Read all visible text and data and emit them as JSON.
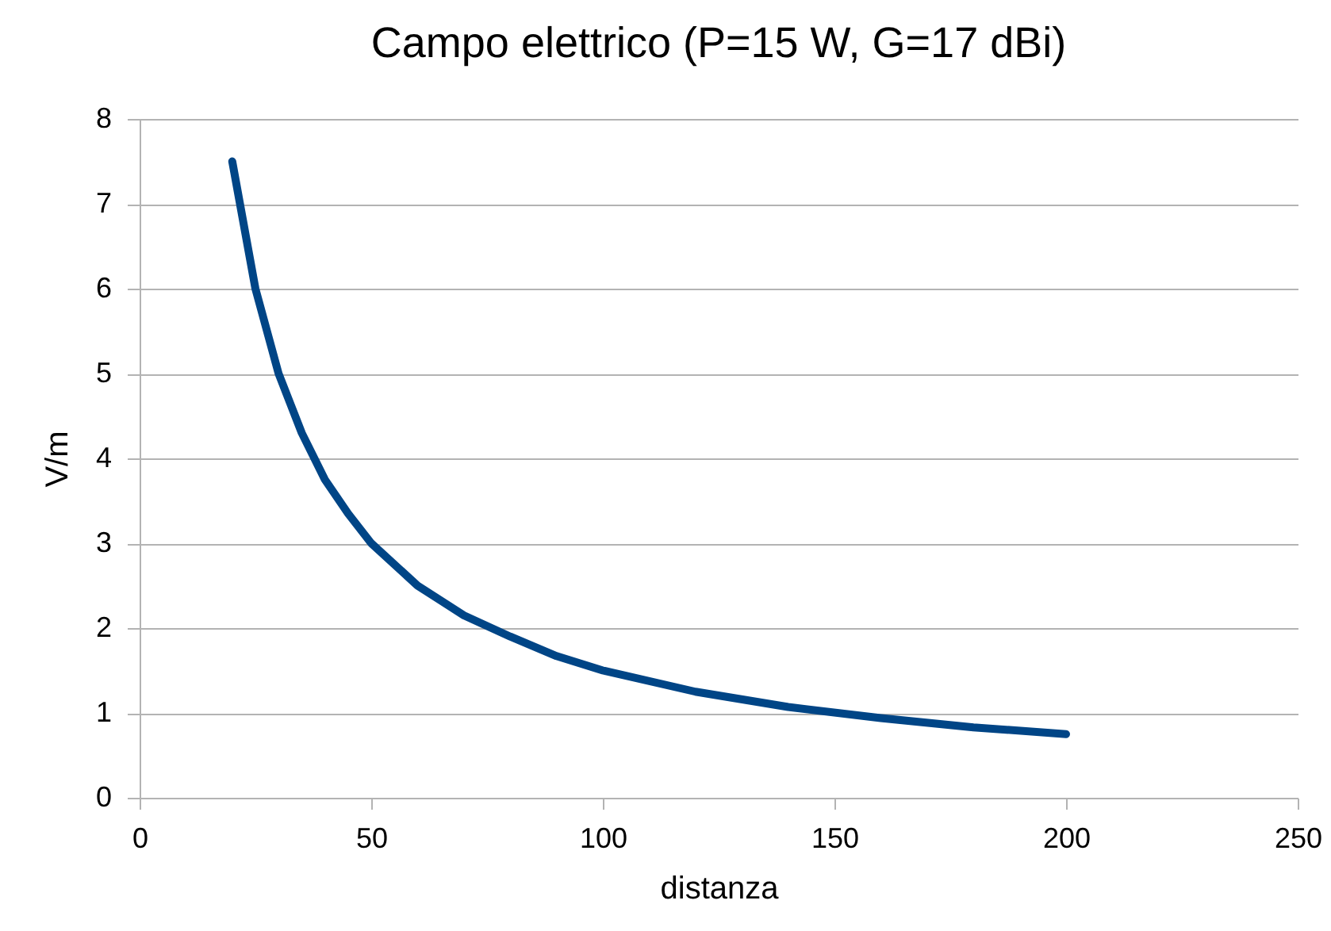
{
  "chart_data": {
    "type": "line",
    "title": "Campo elettrico (P=15 W, G=17 dBi)",
    "xlabel": "distanza",
    "ylabel": "V/m",
    "x": [
      20,
      25,
      30,
      35,
      40,
      45,
      50,
      60,
      70,
      80,
      90,
      100,
      120,
      140,
      160,
      180,
      200
    ],
    "series": [
      {
        "color": "#004586",
        "values": [
          7.5,
          6.0,
          5.0,
          4.3,
          3.75,
          3.35,
          3.0,
          2.5,
          2.15,
          1.9,
          1.67,
          1.5,
          1.25,
          1.07,
          0.94,
          0.83,
          0.75
        ]
      }
    ],
    "xlim": [
      0,
      250
    ],
    "xticks": [
      0,
      50,
      100,
      150,
      200,
      250
    ],
    "ylim": [
      0,
      8
    ],
    "yticks": [
      0,
      1,
      2,
      3,
      4,
      5,
      6,
      7,
      8
    ],
    "grid": "y",
    "marker": "none",
    "line_style": "solid"
  }
}
